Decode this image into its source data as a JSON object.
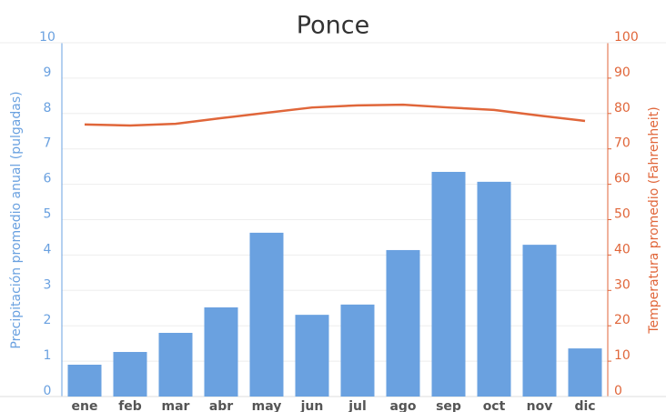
{
  "chart_data": {
    "type": "bar_line",
    "title": "Ponce",
    "categories": [
      "ene",
      "feb",
      "mar",
      "abr",
      "may",
      "jun",
      "jul",
      "ago",
      "sep",
      "oct",
      "nov",
      "dic"
    ],
    "series": [
      {
        "name": "Precipitación promedio anual (pulgadas)",
        "type": "bar",
        "color": "#6aa1e0",
        "values": [
          0.9,
          1.26,
          1.8,
          2.52,
          4.63,
          2.31,
          2.6,
          4.14,
          6.35,
          6.07,
          4.29,
          1.36
        ]
      },
      {
        "name": "Temperatura promedio (Fahrenheit)",
        "type": "line",
        "axis": "y2",
        "color": "#e0663a",
        "values": [
          76.9,
          76.6,
          77.1,
          78.7,
          80.2,
          81.7,
          82.3,
          82.5,
          81.7,
          81.0,
          79.4,
          77.9
        ]
      }
    ],
    "ylabel": "Precipitación promedio anual (pulgadas)",
    "y2label": "Temperatura promedio (Fahrenheit)",
    "ylim": [
      0,
      10
    ],
    "yticks": [
      0,
      1,
      2,
      3,
      4,
      5,
      6,
      7,
      8,
      9,
      10
    ],
    "y2lim": [
      0,
      100
    ],
    "y2ticks": [
      0,
      10,
      20,
      30,
      40,
      50,
      60,
      70,
      80,
      90,
      100
    ],
    "grid": true
  }
}
